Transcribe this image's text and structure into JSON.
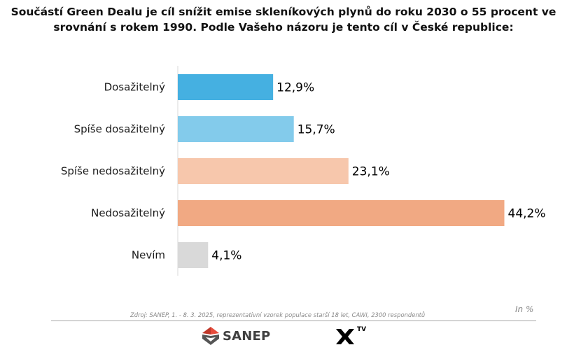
{
  "title": "Součástí Green Dealu je cíl snížit emise skleníkových plynů do roku 2030 o 55 procent ve srovnání s rokem 1990. Podle Vašeho názoru je tento cíl v České republice:",
  "chart_data": {
    "type": "bar",
    "orientation": "horizontal",
    "categories": [
      "Dosažitelný",
      "Spíše dosažitelný",
      "Spíše nedosažitelný",
      "Nedosažitelný",
      "Nevím"
    ],
    "values": [
      12.9,
      15.7,
      23.1,
      44.2,
      4.1
    ],
    "value_labels": [
      "12,9%",
      "15,7%",
      "23,1%",
      "44,2%",
      "4,1%"
    ],
    "colors": [
      "#45B0E1",
      "#83CBEB",
      "#F7C7AC",
      "#F1A983",
      "#D9D9D9"
    ],
    "xlim": [
      0,
      44.2
    ],
    "grid": false,
    "legend": "none"
  },
  "unit_note": "In %",
  "source": "Zdroj: SANEP, 1. - 8. 3. 2025, reprezentativní vzorek populace starší 18 let, CAWI, 2300 respondentů",
  "logos": {
    "sanep": "SANEP",
    "xtv_tv": "TV"
  }
}
